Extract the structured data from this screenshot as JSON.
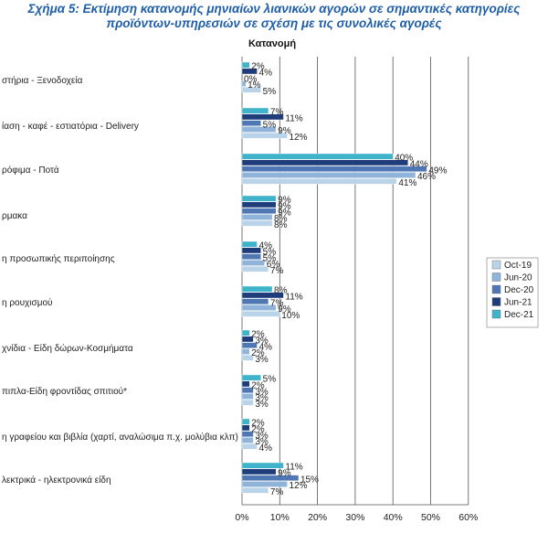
{
  "title_line1": "Σχήμα 5: Εκτίμηση κατανομής μηνιαίων λιανικών αγορών σε σημαντικές κατηγορίες",
  "title_line2": "προϊόντων-υπηρεσιών σε σχέση με τις συνολικές αγορές",
  "colors": {
    "Oct-19": "#b9d3e8",
    "Jun-20": "#8fb3d9",
    "Dec-20": "#4f77b3",
    "Jun-21": "#1f3d7a",
    "Dec-21": "#3fb3c9"
  },
  "chart_data": {
    "type": "bar",
    "orientation": "horizontal",
    "subtitle": "Κατανομή",
    "categories": [
      "στήρια - Ξενοδοχεία",
      "ίαση - καφέ - εστιατόρια - Delivery",
      "ρόφιμα - Ποτά",
      "ρμακα",
      "η προσωπικής περιποίησης",
      "η ρουχισμού",
      "χνίδια - Είδη δώρων-Κοσμήματα",
      "πιπλα-Είδη φροντίδας σπιτιού*",
      "η γραφείου και βιβλία (χαρτί, αναλώσιμα π.χ. μολύβια κλπ)",
      "λεκτρικά - ηλεκτρονικά είδη"
    ],
    "series": [
      {
        "name": "Dec-21",
        "values": [
          2,
          7,
          40,
          9,
          4,
          8,
          2,
          5,
          2,
          11
        ]
      },
      {
        "name": "Jun-21",
        "values": [
          4,
          11,
          44,
          9,
          5,
          11,
          3,
          2,
          2,
          9
        ]
      },
      {
        "name": "Dec-20",
        "values": [
          0,
          5,
          49,
          9,
          5,
          7,
          4,
          3,
          3,
          15
        ]
      },
      {
        "name": "Jun-20",
        "values": [
          1,
          9,
          46,
          8,
          6,
          9,
          2,
          3,
          3,
          12
        ]
      },
      {
        "name": "Oct-19",
        "values": [
          5,
          12,
          41,
          8,
          7,
          10,
          3,
          3,
          4,
          7
        ]
      }
    ],
    "xlim": [
      0,
      60
    ],
    "xticks": [
      "0%",
      "10%",
      "20%",
      "30%",
      "40%",
      "50%",
      "60%"
    ],
    "grid": true,
    "legend": {
      "position": "right",
      "entries": [
        "Oct-19",
        "Jun-20",
        "Dec-20",
        "Jun-21",
        "Dec-21"
      ]
    }
  }
}
